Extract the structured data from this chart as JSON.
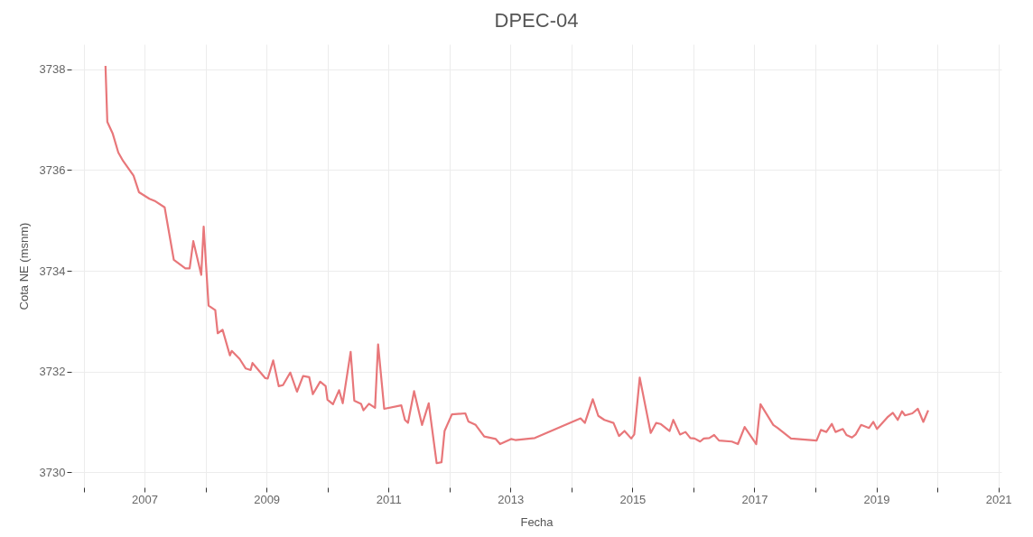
{
  "chart_data": {
    "type": "line",
    "title": "DPEC-04",
    "xlabel": "Fecha",
    "ylabel": "Cota NE (msnm)",
    "xlim": [
      2005.8,
      2021.05
    ],
    "ylim": [
      3729.7,
      3738.5
    ],
    "xticks": [
      {
        "value": 2006,
        "label": null
      },
      2007,
      {
        "value": 2008,
        "label": null
      },
      2009,
      {
        "value": 2010,
        "label": null
      },
      2011,
      {
        "value": 2012,
        "label": null
      },
      2013,
      {
        "value": 2014,
        "label": null
      },
      2015,
      {
        "value": 2016,
        "label": null
      },
      2017,
      {
        "value": 2018,
        "label": null
      },
      2019,
      {
        "value": 2020,
        "label": null
      },
      2021
    ],
    "yticks": [
      3730,
      3732,
      3734,
      3736,
      3738
    ],
    "grid": true,
    "marker": "none",
    "line_style": "solid",
    "series": [
      {
        "color": "#e8777a",
        "x": [
          2006.36,
          2006.39,
          2006.48,
          2006.57,
          2006.65,
          2006.82,
          2006.91,
          2007.08,
          2007.18,
          2007.33,
          2007.48,
          2007.67,
          2007.74,
          2007.8,
          2007.93,
          2007.97,
          2008.05,
          2008.16,
          2008.2,
          2008.28,
          2008.4,
          2008.43,
          2008.56,
          2008.66,
          2008.74,
          2008.77,
          2008.98,
          2009.02,
          2009.11,
          2009.2,
          2009.27,
          2009.39,
          2009.5,
          2009.6,
          2009.7,
          2009.76,
          2009.88,
          2009.97,
          2010.0,
          2010.09,
          2010.19,
          2010.25,
          2010.38,
          2010.44,
          2010.55,
          2010.59,
          2010.68,
          2010.78,
          2010.83,
          2010.93,
          2011.21,
          2011.27,
          2011.32,
          2011.42,
          2011.55,
          2011.66,
          2011.79,
          2011.87,
          2011.92,
          2012.04,
          2012.26,
          2012.31,
          2012.43,
          2012.57,
          2012.76,
          2012.83,
          2013.01,
          2013.08,
          2013.4,
          2014.15,
          2014.22,
          2014.35,
          2014.44,
          2014.54,
          2014.69,
          2014.78,
          2014.87,
          2014.98,
          2015.03,
          2015.12,
          2015.3,
          2015.39,
          2015.46,
          2015.61,
          2015.67,
          2015.78,
          2015.87,
          2015.95,
          2016.02,
          2016.11,
          2016.17,
          2016.26,
          2016.34,
          2016.42,
          2016.63,
          2016.73,
          2016.84,
          2017.03,
          2017.1,
          2017.31,
          2017.38,
          2017.6,
          2018.02,
          2018.09,
          2018.18,
          2018.27,
          2018.33,
          2018.45,
          2018.51,
          2018.6,
          2018.66,
          2018.75,
          2018.88,
          2018.95,
          2019.01,
          2019.18,
          2019.27,
          2019.35,
          2019.42,
          2019.47,
          2019.59,
          2019.68,
          2019.77,
          2019.85
        ],
        "values": [
          3738.07,
          3736.96,
          3736.72,
          3736.35,
          3736.18,
          3735.89,
          3735.56,
          3735.43,
          3735.38,
          3735.26,
          3734.22,
          3734.05,
          3734.05,
          3734.59,
          3733.92,
          3734.88,
          3733.31,
          3733.22,
          3732.76,
          3732.83,
          3732.32,
          3732.41,
          3732.25,
          3732.06,
          3732.03,
          3732.17,
          3731.87,
          3731.86,
          3732.22,
          3731.71,
          3731.73,
          3731.98,
          3731.6,
          3731.91,
          3731.89,
          3731.55,
          3731.8,
          3731.71,
          3731.44,
          3731.35,
          3731.63,
          3731.37,
          3732.39,
          3731.42,
          3731.36,
          3731.23,
          3731.36,
          3731.28,
          3732.54,
          3731.26,
          3731.33,
          3731.04,
          3730.98,
          3731.61,
          3730.94,
          3731.37,
          3730.18,
          3730.2,
          3730.82,
          3731.15,
          3731.17,
          3731.01,
          3730.94,
          3730.71,
          3730.66,
          3730.56,
          3730.66,
          3730.64,
          3730.68,
          3731.07,
          3730.98,
          3731.45,
          3731.12,
          3731.04,
          3730.98,
          3730.72,
          3730.82,
          3730.67,
          3730.75,
          3731.88,
          3730.78,
          3730.98,
          3730.96,
          3730.82,
          3731.04,
          3730.75,
          3730.8,
          3730.68,
          3730.67,
          3730.61,
          3730.67,
          3730.68,
          3730.74,
          3730.63,
          3730.61,
          3730.56,
          3730.9,
          3730.56,
          3731.35,
          3730.94,
          3730.88,
          3730.67,
          3730.63,
          3730.84,
          3730.8,
          3730.96,
          3730.8,
          3730.86,
          3730.74,
          3730.69,
          3730.75,
          3730.94,
          3730.88,
          3731.0,
          3730.86,
          3731.09,
          3731.18,
          3731.04,
          3731.21,
          3731.13,
          3731.17,
          3731.26,
          3731.0,
          3731.23
        ]
      }
    ]
  }
}
